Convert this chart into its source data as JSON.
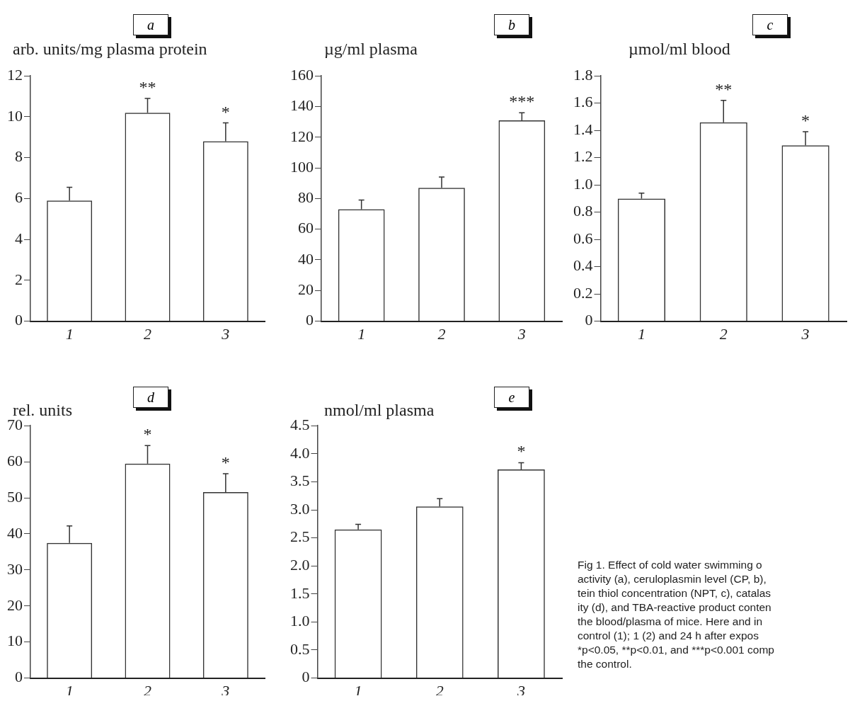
{
  "chart_data": [
    {
      "type": "bar",
      "title": "a",
      "ylabel": "arb. units/mg plasma protein",
      "categories": [
        "1",
        "2",
        "3"
      ],
      "values": [
        5.9,
        10.2,
        8.8
      ],
      "errors": [
        [
          5.9,
          6.55
        ],
        [
          10.2,
          10.9
        ],
        [
          8.8,
          9.7
        ]
      ],
      "value_labels": [
        null,
        "**",
        "*"
      ],
      "color": "#333333",
      "ylim": [
        0,
        12
      ],
      "yticks": [
        0,
        2,
        4,
        6,
        8,
        10,
        12
      ],
      "grid": false
    },
    {
      "type": "bar",
      "title": "b",
      "ylabel": "µg/ml plasma",
      "categories": [
        "1",
        "2",
        "3"
      ],
      "values": [
        73,
        87,
        131
      ],
      "errors": [
        [
          73,
          79
        ],
        [
          87,
          94
        ],
        [
          131,
          136
        ]
      ],
      "value_labels": [
        null,
        null,
        "***"
      ],
      "color": "#333333",
      "ylim": [
        0,
        160
      ],
      "yticks": [
        0,
        20,
        40,
        60,
        80,
        100,
        120,
        140,
        160
      ],
      "grid": false
    },
    {
      "type": "bar",
      "title": "c",
      "ylabel": "µmol/ml blood",
      "categories": [
        "1",
        "2",
        "3"
      ],
      "values": [
        0.9,
        1.46,
        1.29
      ],
      "errors": [
        [
          0.9,
          0.94
        ],
        [
          1.46,
          1.62
        ],
        [
          1.29,
          1.39
        ]
      ],
      "value_labels": [
        null,
        "**",
        "*"
      ],
      "color": "#333333",
      "ylim": [
        0,
        1.8
      ],
      "yticks": [
        0,
        0.2,
        0.4,
        0.6,
        0.8,
        {
          "value": 1,
          "label": "1.0"
        },
        1.2,
        1.4,
        1.6,
        1.8
      ],
      "grid": false
    },
    {
      "type": "bar",
      "title": "d",
      "ylabel": "rel. units",
      "categories": [
        "1",
        "2",
        "3"
      ],
      "values": [
        37.5,
        59.5,
        51.6
      ],
      "errors": [
        [
          37.5,
          42.2
        ],
        [
          59.5,
          64.5
        ],
        [
          51.6,
          56.7
        ]
      ],
      "value_labels": [
        null,
        "*",
        "*"
      ],
      "color": "#333333",
      "ylim": [
        0,
        70
      ],
      "yticks": [
        0,
        10,
        20,
        30,
        40,
        50,
        60,
        70
      ],
      "grid": false
    },
    {
      "type": "bar",
      "title": "e",
      "ylabel": "nmol/ml plasma",
      "categories": [
        "1",
        "2",
        "3"
      ],
      "values": [
        2.65,
        3.06,
        3.72
      ],
      "errors": [
        [
          2.65,
          2.74
        ],
        [
          3.06,
          3.2
        ],
        [
          3.72,
          3.84
        ]
      ],
      "value_labels": [
        null,
        null,
        "*"
      ],
      "color": "#333333",
      "ylim": [
        0,
        4.5
      ],
      "yticks": [
        0,
        0.5,
        {
          "value": 1,
          "label": "1.0"
        },
        1.5,
        {
          "value": 2,
          "label": "2.0"
        },
        2.5,
        {
          "value": 3,
          "label": "3.0"
        },
        3.5,
        {
          "value": 4,
          "label": "4.0"
        },
        4.5
      ],
      "grid": false,
      "annotations": [
        "Fig 1. Effect of cold water swimming o",
        "activity (a), ceruloplasmin level (CP, b),",
        "tein thiol concentration (NPT, c), catalas",
        "ity (d), and TBA-reactive product conten",
        "the blood/plasma of mice. Here and in",
        "control (1); 1 (2) and 24 h after expos",
        "*p<0.05, **p<0.01, and ***p<0.001 comp",
        "the control."
      ]
    }
  ]
}
